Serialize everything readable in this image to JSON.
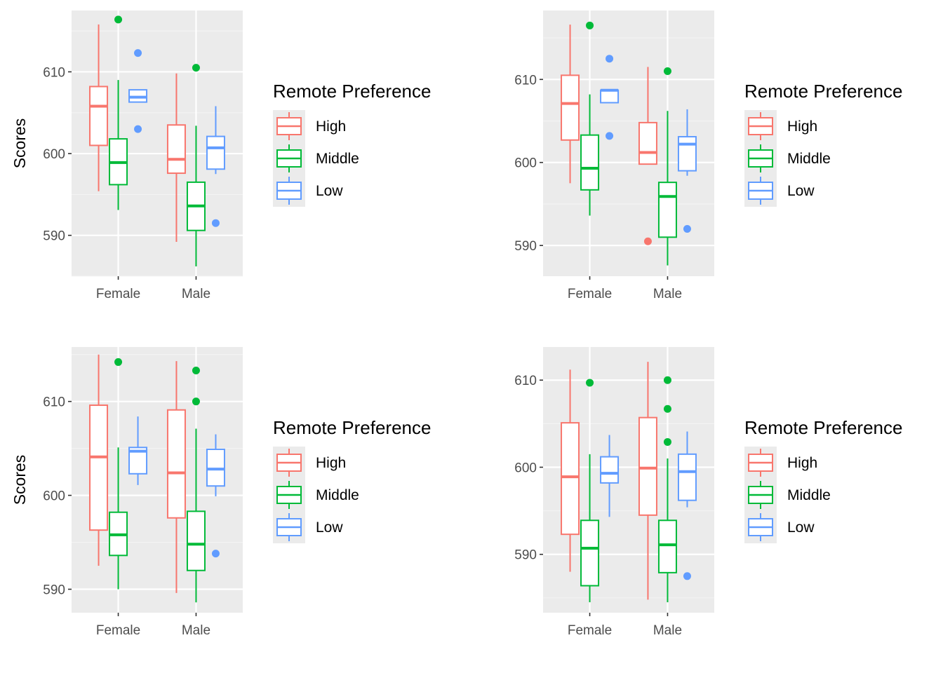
{
  "colors": {
    "panel_bg": "#EBEBEB",
    "grid_major": "#FFFFFF",
    "grid_minor": "#F4F4F4",
    "tick_text": "#4D4D4D",
    "tick_mark": "#333333",
    "series": {
      "High": "#F8766D",
      "Middle": "#00BA38",
      "Low": "#619CFF"
    }
  },
  "legend": {
    "title": "Remote Preference",
    "items": [
      "High",
      "Middle",
      "Low"
    ]
  },
  "chart_data": [
    {
      "type": "boxplot",
      "ylabel": "Scores",
      "ylim": [
        585,
        617.5
      ],
      "yticks": [
        590,
        600,
        610
      ],
      "categories": [
        "Female",
        "Male"
      ],
      "series": [
        {
          "name": "High",
          "boxes": [
            {
              "min": 595.4,
              "q1": 601.0,
              "median": 605.8,
              "q3": 608.2,
              "max": 615.8,
              "outliers": []
            },
            {
              "min": 589.2,
              "q1": 597.6,
              "median": 599.3,
              "q3": 603.5,
              "max": 609.8,
              "outliers": []
            }
          ]
        },
        {
          "name": "Middle",
          "boxes": [
            {
              "min": 593.1,
              "q1": 596.2,
              "median": 598.9,
              "q3": 601.8,
              "max": 609.0,
              "outliers": [
                616.4
              ]
            },
            {
              "min": 586.2,
              "q1": 590.6,
              "median": 593.6,
              "q3": 596.5,
              "max": 603.4,
              "outliers": [
                610.5
              ]
            }
          ]
        },
        {
          "name": "Low",
          "boxes": [
            {
              "min": 606.3,
              "q1": 606.3,
              "median": 606.9,
              "q3": 607.8,
              "max": 607.8,
              "outliers": [
                612.3,
                603.0
              ]
            },
            {
              "min": 597.5,
              "q1": 598.1,
              "median": 600.7,
              "q3": 602.1,
              "max": 605.8,
              "outliers": [
                591.5
              ]
            }
          ]
        }
      ]
    },
    {
      "type": "boxplot",
      "ylabel": "",
      "ylim": [
        586.3,
        618.3
      ],
      "yticks": [
        590,
        600,
        610
      ],
      "categories": [
        "Female",
        "Male"
      ],
      "series": [
        {
          "name": "High",
          "boxes": [
            {
              "min": 597.5,
              "q1": 602.7,
              "median": 607.1,
              "q3": 610.5,
              "max": 616.6,
              "outliers": []
            },
            {
              "min": 599.8,
              "q1": 599.8,
              "median": 601.2,
              "q3": 604.8,
              "max": 611.5,
              "outliers": [
                590.5
              ]
            }
          ]
        },
        {
          "name": "Middle",
          "boxes": [
            {
              "min": 593.6,
              "q1": 596.7,
              "median": 599.3,
              "q3": 603.3,
              "max": 608.2,
              "outliers": [
                616.5
              ]
            },
            {
              "min": 587.6,
              "q1": 591.0,
              "median": 595.9,
              "q3": 597.6,
              "max": 606.2,
              "outliers": [
                611.0
              ]
            }
          ]
        },
        {
          "name": "Low",
          "boxes": [
            {
              "min": 607.2,
              "q1": 607.2,
              "median": 608.7,
              "q3": 608.7,
              "max": 608.7,
              "outliers": [
                612.5,
                603.2
              ]
            },
            {
              "min": 598.4,
              "q1": 599.0,
              "median": 602.2,
              "q3": 603.1,
              "max": 606.4,
              "outliers": [
                592.0
              ]
            }
          ]
        }
      ]
    },
    {
      "type": "boxplot",
      "ylabel": "Scores",
      "ylim": [
        587.5,
        615.8
      ],
      "yticks": [
        590,
        600,
        610
      ],
      "categories": [
        "Female",
        "Male"
      ],
      "series": [
        {
          "name": "High",
          "boxes": [
            {
              "min": 592.5,
              "q1": 596.3,
              "median": 604.1,
              "q3": 609.6,
              "max": 615.0,
              "outliers": []
            },
            {
              "min": 589.6,
              "q1": 597.6,
              "median": 602.4,
              "q3": 609.1,
              "max": 614.3,
              "outliers": []
            }
          ]
        },
        {
          "name": "Middle",
          "boxes": [
            {
              "min": 590.0,
              "q1": 593.6,
              "median": 595.8,
              "q3": 598.2,
              "max": 605.1,
              "outliers": [
                614.2
              ]
            },
            {
              "min": 588.6,
              "q1": 592.0,
              "median": 594.8,
              "q3": 598.3,
              "max": 607.1,
              "outliers": [
                613.3,
                610.0
              ]
            }
          ]
        },
        {
          "name": "Low",
          "boxes": [
            {
              "min": 601.1,
              "q1": 602.3,
              "median": 604.7,
              "q3": 605.1,
              "max": 608.4,
              "outliers": []
            },
            {
              "min": 599.9,
              "q1": 601.0,
              "median": 602.8,
              "q3": 604.9,
              "max": 606.5,
              "outliers": [
                593.8
              ]
            }
          ]
        }
      ]
    },
    {
      "type": "boxplot",
      "ylabel": "",
      "ylim": [
        583.3,
        613.8
      ],
      "yticks": [
        590,
        600,
        610
      ],
      "categories": [
        "Female",
        "Male"
      ],
      "series": [
        {
          "name": "High",
          "boxes": [
            {
              "min": 588.0,
              "q1": 592.3,
              "median": 598.9,
              "q3": 605.1,
              "max": 611.2,
              "outliers": []
            },
            {
              "min": 584.8,
              "q1": 594.5,
              "median": 599.9,
              "q3": 605.7,
              "max": 612.1,
              "outliers": []
            }
          ]
        },
        {
          "name": "Middle",
          "boxes": [
            {
              "min": 584.5,
              "q1": 586.4,
              "median": 590.7,
              "q3": 593.9,
              "max": 601.5,
              "outliers": [
                609.7
              ]
            },
            {
              "min": 584.5,
              "q1": 587.9,
              "median": 591.1,
              "q3": 593.9,
              "max": 601.0,
              "outliers": [
                610.0,
                606.7,
                602.9
              ]
            }
          ]
        },
        {
          "name": "Low",
          "boxes": [
            {
              "min": 594.3,
              "q1": 598.2,
              "median": 599.3,
              "q3": 601.2,
              "max": 603.7,
              "outliers": []
            },
            {
              "min": 595.4,
              "q1": 596.2,
              "median": 599.5,
              "q3": 601.5,
              "max": 604.1,
              "outliers": [
                587.5
              ]
            }
          ]
        }
      ]
    }
  ]
}
